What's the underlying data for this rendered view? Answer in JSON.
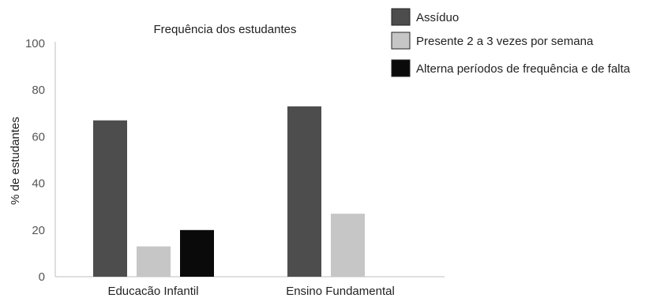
{
  "chart_data": {
    "type": "bar",
    "title": "Frequência dos estudantes",
    "xlabel": "",
    "ylabel": "% de estudantes",
    "ylim": [
      0,
      100
    ],
    "yticks": [
      "0",
      "20",
      "40",
      "60",
      "80",
      "100"
    ],
    "grid": false,
    "legend_position": "top-right",
    "categories": [
      "Educacão Infantil",
      "Ensino Fundamental"
    ],
    "series": [
      {
        "name": "Assíduo",
        "color": "#4d4d4d",
        "values": [
          67,
          73
        ]
      },
      {
        "name": "Presente 2 a 3 vezes por semana",
        "color": "#c6c6c6",
        "values": [
          13,
          27
        ]
      },
      {
        "name": "Alterna períodos de frequência e de falta",
        "color": "#0a0a0a",
        "values": [
          20,
          null
        ]
      }
    ]
  }
}
